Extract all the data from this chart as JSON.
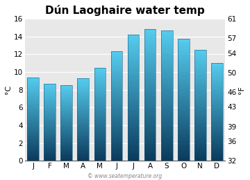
{
  "title": "Dún Laoghaire water temp",
  "months": [
    "J",
    "F",
    "M",
    "A",
    "M",
    "J",
    "J",
    "A",
    "S",
    "O",
    "N",
    "D"
  ],
  "values_c": [
    9.4,
    8.7,
    8.5,
    9.3,
    10.5,
    12.3,
    14.2,
    14.8,
    14.7,
    13.7,
    12.5,
    11.0
  ],
  "ylim_c": [
    0,
    16
  ],
  "yticks_c": [
    0,
    2,
    4,
    6,
    8,
    10,
    12,
    14,
    16
  ],
  "yticks_f": [
    32,
    36,
    39,
    43,
    46,
    50,
    54,
    57,
    61
  ],
  "ylabel_left": "°C",
  "ylabel_right": "°F",
  "bar_color_top": "#55ccee",
  "bar_color_bottom": "#0a3a5c",
  "bar_edge_color": "#1a5c80",
  "background_color": "#ffffff",
  "plot_bg_color": "#e8e8e8",
  "grid_color": "#ffffff",
  "title_fontsize": 11,
  "axis_fontsize": 8,
  "tick_fontsize": 7.5,
  "watermark": "© www.seatemperature.org",
  "bar_width": 0.7,
  "num_grad": 200
}
